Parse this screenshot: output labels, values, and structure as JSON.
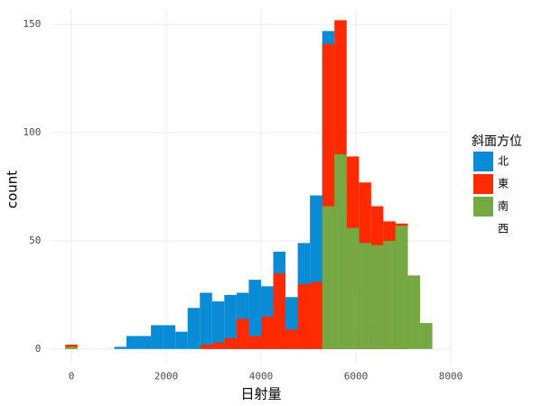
{
  "chart_data": {
    "type": "histogram",
    "x_label": "日射量",
    "y_label": "count",
    "legend_title": "斜面方位",
    "bins": [
      -129,
      129,
      387,
      645,
      903,
      1161,
      1419,
      1677,
      1935,
      2193,
      2451,
      2709,
      2967,
      3225,
      3483,
      3741,
      3999,
      4257,
      4515,
      4773,
      5031,
      5289,
      5547,
      5805,
      6063,
      6321,
      6579,
      6837,
      7095,
      7353,
      7611
    ],
    "series": [
      {
        "name": "北",
        "color": "#0a8bd6",
        "values": [
          0,
          0,
          0,
          0,
          1,
          6,
          6,
          11,
          11,
          8,
          19,
          26,
          22,
          25,
          26,
          32,
          29,
          45,
          24,
          49,
          71,
          147,
          60,
          25,
          10,
          4,
          2,
          1,
          0,
          0
        ]
      },
      {
        "name": "東",
        "color": "#ff2a00",
        "values": [
          2,
          0,
          0,
          0,
          0,
          0,
          0,
          0,
          0,
          0,
          0,
          2,
          3,
          5,
          14,
          6,
          15,
          35,
          9,
          30,
          31,
          141,
          152,
          89,
          77,
          66,
          59,
          58,
          0,
          0
        ]
      },
      {
        "name": "南",
        "color": "#76a843",
        "values": [
          1,
          0,
          0,
          0,
          0,
          0,
          0,
          0,
          0,
          0,
          0,
          0,
          0,
          0,
          0,
          0,
          0,
          0,
          0,
          0,
          0,
          66,
          90,
          56,
          49,
          48,
          50,
          57,
          34,
          12
        ]
      },
      {
        "name": "西",
        "color": null,
        "values": [
          null,
          null,
          null,
          null,
          null,
          null,
          null,
          null,
          null,
          null,
          null,
          null,
          null,
          null,
          null,
          null,
          null,
          null,
          null,
          null,
          null,
          null,
          null,
          null,
          null,
          null,
          null,
          null,
          null,
          null
        ]
      }
    ],
    "xlim": [
      -450,
      8000
    ],
    "ylim": [
      -7,
      157
    ],
    "xticks": [
      0,
      2000,
      4000,
      6000,
      8000
    ],
    "yticks": [
      0,
      50,
      100,
      150
    ],
    "grid": true
  }
}
